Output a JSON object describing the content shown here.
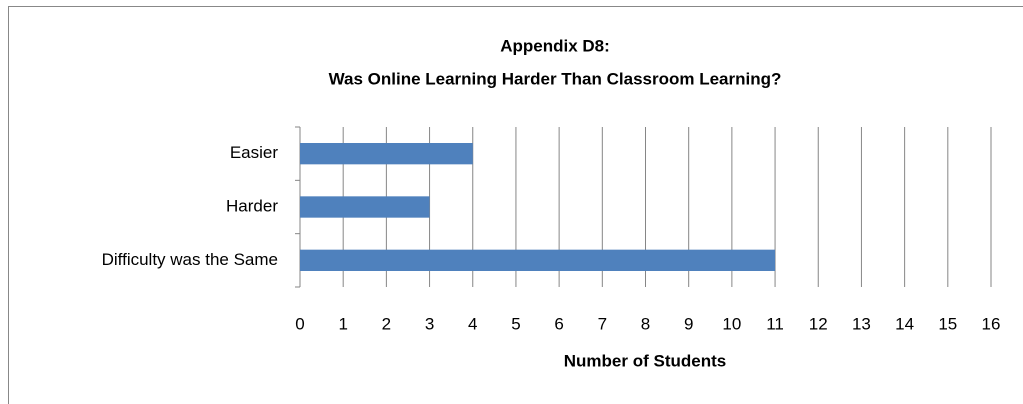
{
  "chart_data": {
    "type": "hbar",
    "title": [
      "Appendix D8:",
      "Was Online Learning Harder Than Classroom Learning?"
    ],
    "x_label": "Number of Students",
    "categories": [
      "Easier",
      "Harder",
      "Difficulty was the Same"
    ],
    "values": [
      4,
      3,
      11
    ],
    "color": "#4f81bd",
    "xlim": [
      0,
      16
    ],
    "xticks": [
      0,
      1,
      2,
      3,
      4,
      5,
      6,
      7,
      8,
      9,
      10,
      11,
      12,
      13,
      14,
      15,
      16
    ],
    "grid": true
  }
}
